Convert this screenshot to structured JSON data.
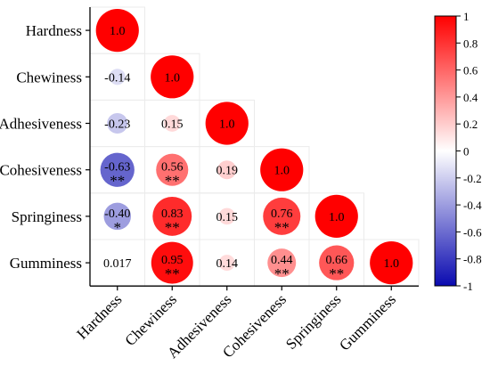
{
  "chart_data": {
    "type": "heatmap",
    "variables": [
      "Hardness",
      "Chewiness",
      "Adhesiveness",
      "Cohesiveness",
      "Springiness",
      "Gumminess"
    ],
    "cells": [
      {
        "row": "Hardness",
        "col": "Hardness",
        "value": 1.0,
        "label": "1.0",
        "sig": ""
      },
      {
        "row": "Chewiness",
        "col": "Hardness",
        "value": -0.14,
        "label": "-0.14",
        "sig": ""
      },
      {
        "row": "Chewiness",
        "col": "Chewiness",
        "value": 1.0,
        "label": "1.0",
        "sig": ""
      },
      {
        "row": "Adhesiveness",
        "col": "Hardness",
        "value": -0.23,
        "label": "-0.23",
        "sig": ""
      },
      {
        "row": "Adhesiveness",
        "col": "Chewiness",
        "value": 0.15,
        "label": "0.15",
        "sig": ""
      },
      {
        "row": "Adhesiveness",
        "col": "Adhesiveness",
        "value": 1.0,
        "label": "1.0",
        "sig": ""
      },
      {
        "row": "Cohesiveness",
        "col": "Hardness",
        "value": -0.63,
        "label": "-0.63",
        "sig": "**"
      },
      {
        "row": "Cohesiveness",
        "col": "Chewiness",
        "value": 0.56,
        "label": "0.56",
        "sig": "**"
      },
      {
        "row": "Cohesiveness",
        "col": "Adhesiveness",
        "value": 0.19,
        "label": "0.19",
        "sig": ""
      },
      {
        "row": "Cohesiveness",
        "col": "Cohesiveness",
        "value": 1.0,
        "label": "1.0",
        "sig": ""
      },
      {
        "row": "Springiness",
        "col": "Hardness",
        "value": -0.4,
        "label": "-0.40",
        "sig": "*"
      },
      {
        "row": "Springiness",
        "col": "Chewiness",
        "value": 0.83,
        "label": "0.83",
        "sig": "**"
      },
      {
        "row": "Springiness",
        "col": "Adhesiveness",
        "value": 0.15,
        "label": "0.15",
        "sig": ""
      },
      {
        "row": "Springiness",
        "col": "Cohesiveness",
        "value": 0.76,
        "label": "0.76",
        "sig": "**"
      },
      {
        "row": "Springiness",
        "col": "Springiness",
        "value": 1.0,
        "label": "1.0",
        "sig": ""
      },
      {
        "row": "Gumminess",
        "col": "Hardness",
        "value": 0.017,
        "label": "0.017",
        "sig": ""
      },
      {
        "row": "Gumminess",
        "col": "Chewiness",
        "value": 0.95,
        "label": "0.95",
        "sig": "**"
      },
      {
        "row": "Gumminess",
        "col": "Adhesiveness",
        "value": 0.14,
        "label": "0.14",
        "sig": ""
      },
      {
        "row": "Gumminess",
        "col": "Cohesiveness",
        "value": 0.44,
        "label": "0.44",
        "sig": "**"
      },
      {
        "row": "Gumminess",
        "col": "Springiness",
        "value": 0.66,
        "label": "0.66",
        "sig": "**"
      },
      {
        "row": "Gumminess",
        "col": "Gumminess",
        "value": 1.0,
        "label": "1.0",
        "sig": ""
      }
    ],
    "colorbar": {
      "ticks": [
        "1",
        "0.8",
        "0.6",
        "0.4",
        "0.2",
        "0",
        "-0.2",
        "-0.4",
        "-0.6",
        "-0.8",
        "-1"
      ],
      "range": [
        -1,
        1
      ],
      "colors": {
        "low": "#0a0ab0",
        "mid": "#ffffff",
        "high": "#ff0000"
      }
    }
  }
}
